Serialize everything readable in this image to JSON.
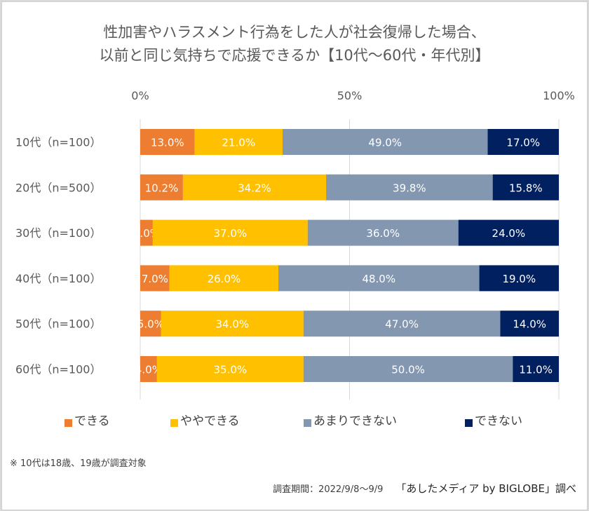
{
  "title": {
    "line1": "性加害やハラスメント行為をした人が社会復帰した場合、",
    "line2": "以前と同じ気持ちで応援できるか【10代～60代・年代別】"
  },
  "chart_data": {
    "type": "bar",
    "orientation": "horizontal",
    "stacked": "100%",
    "title": "性加害やハラスメント行為をした人が社会復帰した場合、以前と同じ気持ちで応援できるか【10代～60代・年代別】",
    "xlabel": "",
    "ylabel": "",
    "xlim": [
      0,
      100
    ],
    "x_ticks": [
      "0%",
      "50%",
      "100%"
    ],
    "grid": true,
    "legend_position": "bottom",
    "categories": [
      "10代（n=100）",
      "20代（n=500）",
      "30代（n=100）",
      "40代（n=100）",
      "50代（n=100）",
      "60代（n=100）"
    ],
    "series": [
      {
        "name": "できる",
        "color": "#ed7d31",
        "label_color": "#ffffff",
        "values": [
          13.0,
          10.2,
          3.0,
          7.0,
          5.0,
          4.0
        ]
      },
      {
        "name": "ややできる",
        "color": "#ffc000",
        "label_color": "#ffffff",
        "values": [
          21.0,
          34.2,
          37.0,
          26.0,
          34.0,
          35.0
        ]
      },
      {
        "name": "あまりできない",
        "color": "#8497b0",
        "label_color": "#ffffff",
        "values": [
          49.0,
          39.8,
          36.0,
          48.0,
          47.0,
          50.0
        ]
      },
      {
        "name": "できない",
        "color": "#002060",
        "label_color": "#ffffff",
        "values": [
          17.0,
          15.8,
          24.0,
          19.0,
          14.0,
          11.0
        ]
      }
    ],
    "value_format": "{v}%"
  },
  "note": "※ 10代は18歳、19歳が調査対象",
  "footer": {
    "period": "調査期間：2022/9/8～9/9",
    "source": "「あしたメディア by BIGLOBE」調べ"
  }
}
